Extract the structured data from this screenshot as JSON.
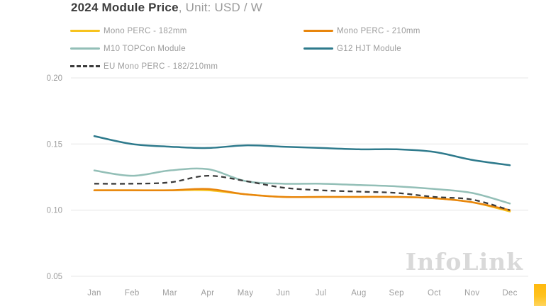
{
  "title": {
    "main": "2024 Module Price",
    "unit": ", Unit: USD / W"
  },
  "watermark": "InfoLink",
  "corner_accent_color": "#FFB90F",
  "colors": {
    "grid": "#ECECEC",
    "axis_text": "#9E9E9E",
    "title_text": "#3C3C3C",
    "subtitle_text": "#9A9A9A",
    "watermark_text": "#D9D9D9"
  },
  "chart_data": {
    "type": "line",
    "title": "2024 Module Price",
    "unit_label": "Unit: USD / W",
    "grid": "horizontal",
    "legend_position": "top-left, two columns",
    "categories": [
      "Jan",
      "Feb",
      "Mar",
      "Apr",
      "May",
      "Jun",
      "Jul",
      "Aug",
      "Sep",
      "Oct",
      "Nov",
      "Dec"
    ],
    "y_ticks": [
      "0.20",
      "0.15",
      "0.10",
      "0.05"
    ],
    "ylim": [
      0.05,
      0.2
    ],
    "series": [
      {
        "name": "Mono PERC - 182mm",
        "color": "#F7C31E",
        "style": "solid",
        "values": [
          0.115,
          0.115,
          0.115,
          0.115,
          0.112,
          0.11,
          0.11,
          0.11,
          0.11,
          0.109,
          0.106,
          0.099
        ]
      },
      {
        "name": "Mono PERC - 210mm",
        "color": "#E8860D",
        "style": "solid",
        "values": [
          0.115,
          0.115,
          0.115,
          0.116,
          0.112,
          0.11,
          0.11,
          0.11,
          0.11,
          0.109,
          0.106,
          0.1
        ]
      },
      {
        "name": "M10 TOPCon Module",
        "color": "#93BFB7",
        "style": "solid",
        "values": [
          0.13,
          0.126,
          0.13,
          0.131,
          0.122,
          0.12,
          0.12,
          0.119,
          0.118,
          0.116,
          0.113,
          0.105
        ]
      },
      {
        "name": "G12 HJT Module",
        "color": "#2E7A8C",
        "style": "solid",
        "values": [
          0.156,
          0.15,
          0.148,
          0.147,
          0.149,
          0.148,
          0.147,
          0.146,
          0.146,
          0.144,
          0.138,
          0.134
        ]
      },
      {
        "name": "EU Mono PERC - 182/210mm",
        "color": "#3B3B3B",
        "style": "dashed",
        "values": [
          0.12,
          0.12,
          0.121,
          0.126,
          0.122,
          0.117,
          0.115,
          0.114,
          0.113,
          0.11,
          0.108,
          0.1
        ]
      }
    ]
  }
}
